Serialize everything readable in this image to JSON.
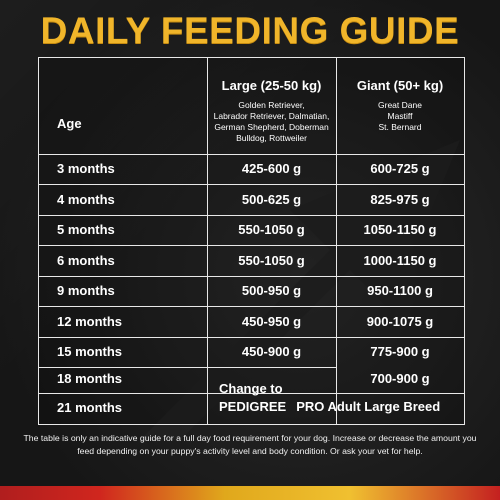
{
  "title": "DAILY FEEDING GUIDE",
  "table": {
    "age_header": "Age",
    "large": {
      "label": "Large (25-50 kg)",
      "breeds": [
        "Golden Retriever,",
        "Labrador Retriever, Dalmatian,",
        "German Shepherd, Doberman",
        "Bulldog, Rottweiler"
      ]
    },
    "giant": {
      "label": "Giant (50+ kg)",
      "breeds": [
        "Great Dane",
        "Mastiff",
        "St. Bernard"
      ]
    },
    "rows": [
      {
        "age": "3 months",
        "large": "425-600 g",
        "giant": "600-725 g"
      },
      {
        "age": "4 months",
        "large": "500-625 g",
        "giant": "825-975 g"
      },
      {
        "age": "5 months",
        "large": "550-1050 g",
        "giant": "1050-1150 g"
      },
      {
        "age": "6 months",
        "large": "550-1050 g",
        "giant": "1000-1150 g"
      },
      {
        "age": "9 months",
        "large": "500-950 g",
        "giant": "950-1100 g"
      },
      {
        "age": "12 months",
        "large": "450-950 g",
        "giant": "900-1075 g"
      },
      {
        "age": "15 months",
        "large": "450-900 g",
        "giant": "775-900 g"
      },
      {
        "age": "18 months",
        "giant": "700-900 g"
      },
      {
        "age": "21 months"
      }
    ],
    "change_to": {
      "line1": "Change to",
      "brand": "PEDIGREE",
      "product": "PRO Adult Large Breed"
    }
  },
  "footnote": "The table is only an indicative guide for a full day food requirement for your dog. Increase or decrease the amount you feed depending on your puppy's activity level and body condition. Or ask your vet for help."
}
